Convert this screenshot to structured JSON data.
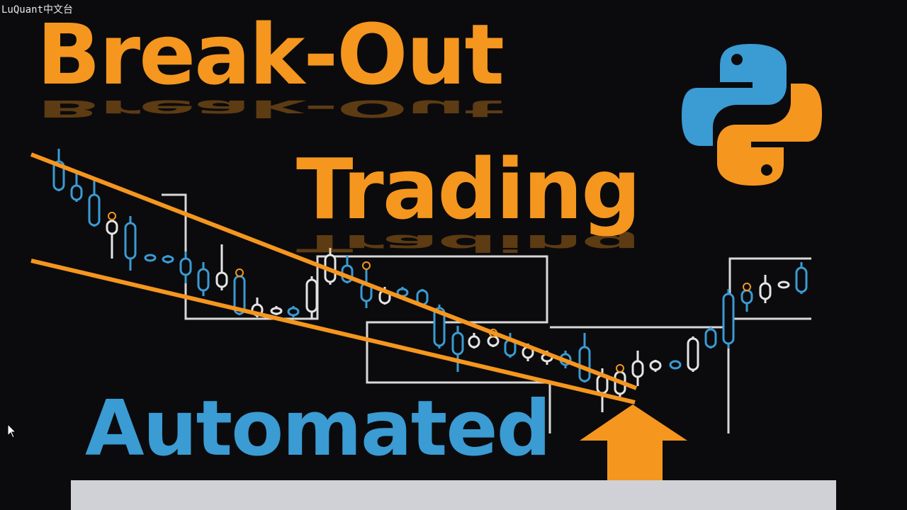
{
  "watermark": "LuQuant中文台",
  "headline": {
    "line1": "Break-Out",
    "line2": "Trading",
    "line3": "Automated"
  },
  "colors": {
    "orange": "#f5961f",
    "blue": "#3b9bd3",
    "white_outline": "#e4e4e4",
    "subtitle_bar": "#cfd1d6",
    "background": "#0b0b0d"
  },
  "icons": {
    "logo": "python-logo-icon",
    "arrow": "up-arrow-icon",
    "cursor": "mouse-pointer-icon"
  }
}
